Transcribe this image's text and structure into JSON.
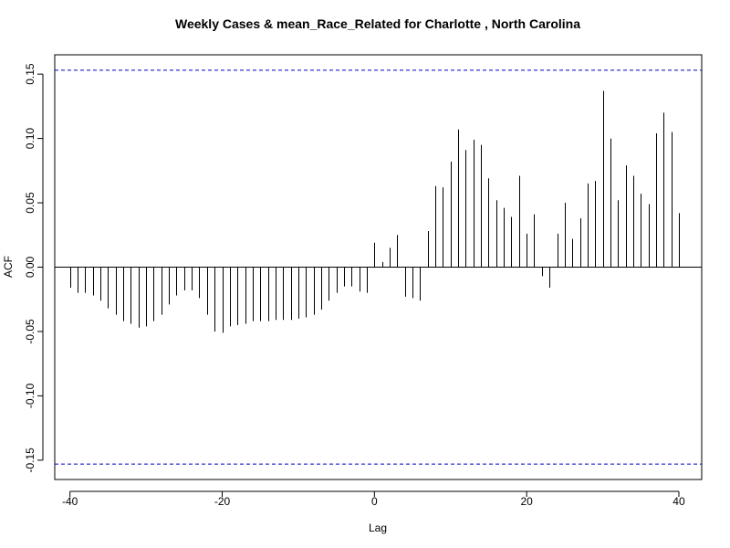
{
  "chart_data": {
    "type": "bar",
    "title": "Weekly Cases & mean_Race_Related for Charlotte , North Carolina",
    "xlabel": "Lag",
    "ylabel": "ACF",
    "xlim": [
      -42,
      43
    ],
    "ylim": [
      -0.165,
      0.165
    ],
    "x_ticks": [
      -40,
      -20,
      0,
      20,
      40
    ],
    "x_tick_labels": [
      "-40",
      "-20",
      "0",
      "20",
      "40"
    ],
    "y_ticks": [
      -0.15,
      -0.1,
      -0.05,
      0.0,
      0.05,
      0.1,
      0.15
    ],
    "y_tick_labels": [
      "-0.15",
      "-0.10",
      "-0.05",
      "0.00",
      "0.05",
      "0.10",
      "0.15"
    ],
    "confidence_bound": 0.153,
    "confidence_color": "#0000cc",
    "line_color": "#000000",
    "grid": false,
    "lags": [
      -40,
      -39,
      -38,
      -37,
      -36,
      -35,
      -34,
      -33,
      -32,
      -31,
      -30,
      -29,
      -28,
      -27,
      -26,
      -25,
      -24,
      -23,
      -22,
      -21,
      -20,
      -19,
      -18,
      -17,
      -16,
      -15,
      -14,
      -13,
      -12,
      -11,
      -10,
      -9,
      -8,
      -7,
      -6,
      -5,
      -4,
      -3,
      -2,
      -1,
      0,
      1,
      2,
      3,
      4,
      5,
      6,
      7,
      8,
      9,
      10,
      11,
      12,
      13,
      14,
      15,
      16,
      17,
      18,
      19,
      20,
      21,
      22,
      23,
      24,
      25,
      26,
      27,
      28,
      29,
      30,
      31,
      32,
      33,
      34,
      35,
      36,
      37,
      38,
      39,
      40
    ],
    "values": [
      -0.016,
      -0.02,
      -0.02,
      -0.022,
      -0.026,
      -0.032,
      -0.037,
      -0.042,
      -0.044,
      -0.047,
      -0.046,
      -0.042,
      -0.037,
      -0.029,
      -0.022,
      -0.018,
      -0.018,
      -0.024,
      -0.037,
      -0.05,
      -0.051,
      -0.046,
      -0.045,
      -0.044,
      -0.042,
      -0.042,
      -0.042,
      -0.041,
      -0.041,
      -0.041,
      -0.04,
      -0.039,
      -0.037,
      -0.033,
      -0.026,
      -0.02,
      -0.015,
      -0.015,
      -0.019,
      -0.02,
      0.019,
      0.004,
      0.015,
      0.025,
      -0.023,
      -0.024,
      -0.026,
      0.028,
      0.063,
      0.062,
      0.082,
      0.107,
      0.091,
      0.099,
      0.095,
      0.069,
      0.052,
      0.046,
      0.039,
      0.071,
      0.026,
      0.041,
      -0.007,
      -0.016,
      0.026,
      0.05,
      0.022,
      0.038,
      0.065,
      0.067,
      0.137,
      0.1,
      0.052,
      0.079,
      0.071,
      0.057,
      0.049,
      0.104,
      0.12,
      0.105,
      0.042
    ]
  }
}
